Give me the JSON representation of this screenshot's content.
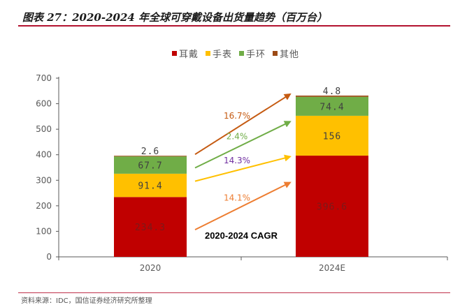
{
  "page_title": "图表 27：2020-2024 年全球可穿戴设备出货量趋势（百万台）",
  "source_note": "资料来源：IDC，国信证券经济研究所整理",
  "chart_data": {
    "type": "bar",
    "stacked": true,
    "title": "2020-2024 年全球可穿戴设备出货量趋势（百万台）",
    "categories": [
      "2020",
      "2024E"
    ],
    "series": [
      {
        "name": "耳戴",
        "values": [
          234.3,
          396.6
        ],
        "labels": [
          "234.3",
          "396.6"
        ],
        "color": "#c00000"
      },
      {
        "name": "手表",
        "values": [
          91.4,
          156
        ],
        "labels": [
          "91.4",
          "156"
        ],
        "color": "#ffc000"
      },
      {
        "name": "手环",
        "values": [
          67.7,
          74.4
        ],
        "labels": [
          "67.7",
          "74.4"
        ],
        "color": "#70ad47"
      },
      {
        "name": "其他",
        "values": [
          2.6,
          4.8
        ],
        "labels": [
          "2.6",
          "4.8"
        ],
        "color": "#9c4a15"
      }
    ],
    "yticks": [
      "0",
      "100",
      "200",
      "300",
      "400",
      "500",
      "600",
      "700"
    ],
    "ylim": [
      0,
      700
    ],
    "legend_position": "top-center",
    "cagr_title": "2020-2024 CAGR",
    "cagr": [
      {
        "series": "其他",
        "label": "16.7%",
        "color": "#c55a11",
        "label_color": "#c55a11"
      },
      {
        "series": "手环",
        "label": "2.4%",
        "color": "#70ad47",
        "label_color": "#70ad47"
      },
      {
        "series": "手表",
        "label": "14.3%",
        "color": "#ffc000",
        "label_color": "#7030a0"
      },
      {
        "series": "耳戴",
        "label": "14.1%",
        "color": "#ed7d31",
        "label_color": "#ed7d31"
      }
    ]
  }
}
